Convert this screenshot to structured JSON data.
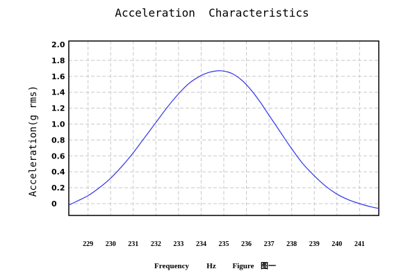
{
  "chart_data": {
    "type": "line",
    "title": "Acceleration  Characteristics",
    "ylabel": "Acceleration(g rms)",
    "xlabel": "Frequency",
    "xunit": "Hz",
    "figure_label": "Figure",
    "figure_number": "图一",
    "xlim": [
      228.15,
      241.85
    ],
    "ylim": [
      -0.1,
      2.0
    ],
    "yticks": [
      "2.0",
      "1.8",
      "1.6",
      "1.4",
      "1.2",
      "1.0",
      "0.8",
      "0.6",
      "0.4",
      "0.2",
      "0"
    ],
    "ytick_values": [
      2.0,
      1.8,
      1.6,
      1.4,
      1.2,
      1.0,
      0.8,
      0.6,
      0.4,
      0.2,
      0.0
    ],
    "xticks": [
      "229",
      "230",
      "231",
      "232",
      "233",
      "234",
      "235",
      "236",
      "237",
      "238",
      "239",
      "240",
      "241"
    ],
    "xtick_values": [
      229,
      230,
      231,
      232,
      233,
      234,
      235,
      236,
      237,
      238,
      239,
      240,
      241
    ],
    "grid": true,
    "series": [
      {
        "color": "#3333ee",
        "x": [
          228.15,
          228.5,
          229.0,
          229.5,
          230.0,
          230.5,
          231.0,
          231.5,
          232.0,
          232.5,
          233.0,
          233.5,
          234.0,
          234.3,
          234.6,
          234.85,
          235.1,
          235.4,
          235.8,
          236.2,
          236.6,
          237.0,
          237.5,
          238.0,
          238.5,
          239.0,
          239.5,
          240.0,
          240.5,
          241.0,
          241.5,
          241.85
        ],
        "y": [
          -0.02,
          0.03,
          0.1,
          0.2,
          0.32,
          0.47,
          0.64,
          0.83,
          1.02,
          1.21,
          1.38,
          1.52,
          1.61,
          1.645,
          1.665,
          1.67,
          1.66,
          1.63,
          1.55,
          1.43,
          1.28,
          1.11,
          0.9,
          0.69,
          0.5,
          0.35,
          0.22,
          0.12,
          0.05,
          0.0,
          -0.04,
          -0.06
        ]
      }
    ]
  }
}
